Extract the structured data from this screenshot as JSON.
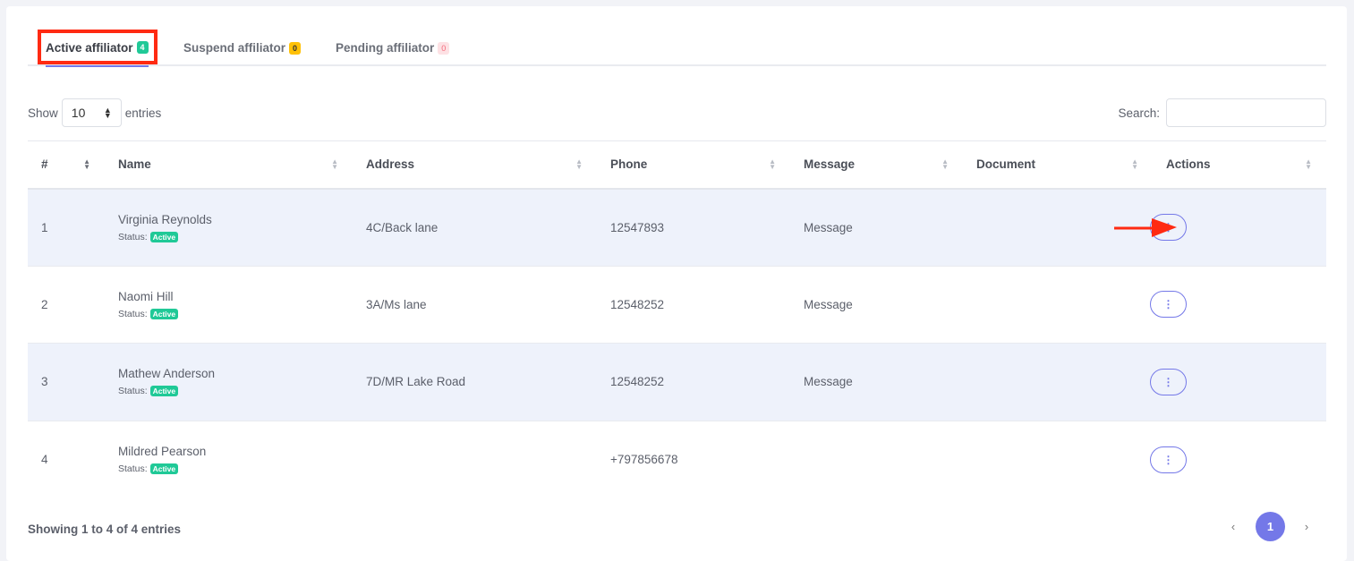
{
  "tabs": [
    {
      "label": "Active affiliator",
      "count": "4",
      "badge_bg": "#20c997",
      "badge_fg": "#ffffff"
    },
    {
      "label": "Suspend affiliator",
      "count": "0",
      "badge_bg": "#ffc107",
      "badge_fg": "#333333"
    },
    {
      "label": "Pending affiliator",
      "count": "0",
      "badge_bg": "#fde1e4",
      "badge_fg": "#f46a7a"
    }
  ],
  "length": {
    "show": "Show",
    "value": "10",
    "entries": "entries"
  },
  "search": {
    "label": "Search:",
    "value": ""
  },
  "columns": [
    "#",
    "Name",
    "Address",
    "Phone",
    "Message",
    "Document",
    "Actions"
  ],
  "rows": [
    {
      "num": "1",
      "name": "Virginia Reynolds",
      "status_label": "Status:",
      "status": "Active",
      "address": "4C/Back lane",
      "phone": "12547893",
      "message": "Message",
      "document": ""
    },
    {
      "num": "2",
      "name": "Naomi Hill",
      "status_label": "Status:",
      "status": "Active",
      "address": "3A/Ms lane",
      "phone": "12548252",
      "message": "Message",
      "document": ""
    },
    {
      "num": "3",
      "name": "Mathew Anderson",
      "status_label": "Status:",
      "status": "Active",
      "address": "7D/MR Lake Road",
      "phone": "12548252",
      "message": "Message",
      "document": ""
    },
    {
      "num": "4",
      "name": "Mildred Pearson",
      "status_label": "Status:",
      "status": "Active",
      "address": "",
      "phone": "+797856678",
      "message": "",
      "document": ""
    }
  ],
  "footer": {
    "info": "Showing 1 to 4 of 4 entries",
    "prev": "‹",
    "page": "1",
    "next": "›"
  },
  "accent": "#7478e8"
}
